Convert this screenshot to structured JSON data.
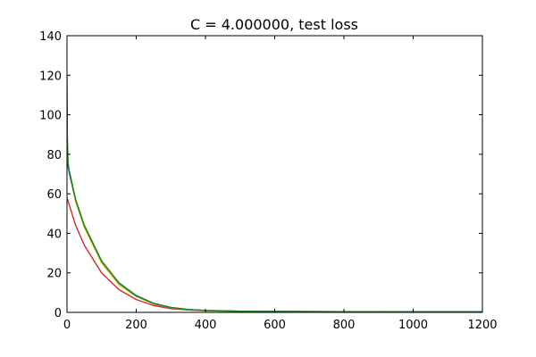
{
  "chart_data": {
    "type": "line",
    "title": "C = 4.000000, test loss",
    "xlabel": "",
    "ylabel": "",
    "xlim": [
      0,
      1200
    ],
    "ylim": [
      0,
      140
    ],
    "xticks": [
      0,
      200,
      400,
      600,
      800,
      1000,
      1200
    ],
    "yticks": [
      0,
      20,
      40,
      60,
      80,
      100,
      120,
      140
    ],
    "grid": false,
    "series": [
      {
        "color": "#d62728",
        "x": [
          0,
          25,
          50,
          100,
          150,
          200,
          250,
          300,
          350,
          400,
          500,
          600,
          800,
          1000,
          1200
        ],
        "y": [
          58,
          44,
          34,
          20,
          11.5,
          6.5,
          3.5,
          1.9,
          1.2,
          0.8,
          0.5,
          0.4,
          0.35,
          0.3,
          0.3
        ]
      },
      {
        "color": "#e5b800",
        "x": [
          0,
          1,
          3,
          6,
          10,
          25,
          50,
          100,
          150,
          200,
          250,
          300,
          350,
          400,
          500,
          600,
          800,
          1000,
          1200
        ],
        "y": [
          110,
          85,
          75,
          72,
          68,
          56,
          43,
          25,
          14,
          8,
          4.3,
          2.3,
          1.4,
          0.9,
          0.6,
          0.45,
          0.35,
          0.3,
          0.3
        ]
      },
      {
        "color": "#1f3fbf",
        "x": [
          0,
          1,
          3,
          6,
          10,
          25,
          50,
          100,
          150,
          200,
          250,
          300,
          350,
          400,
          500,
          600,
          800,
          1000,
          1200
        ],
        "y": [
          105,
          82,
          74,
          71,
          68,
          57,
          44,
          26,
          15,
          8.5,
          4.6,
          2.5,
          1.5,
          1.0,
          0.6,
          0.45,
          0.35,
          0.3,
          0.3
        ]
      },
      {
        "color": "#1a8a1a",
        "x": [
          0,
          1,
          3,
          6,
          10,
          25,
          50,
          100,
          150,
          200,
          250,
          300,
          350,
          400,
          500,
          600,
          800,
          1000,
          1200
        ],
        "y": [
          120,
          88,
          76,
          72,
          69,
          57,
          44,
          26,
          14.8,
          8.3,
          4.5,
          2.4,
          1.45,
          0.95,
          0.6,
          0.45,
          0.35,
          0.3,
          0.3
        ]
      }
    ]
  }
}
